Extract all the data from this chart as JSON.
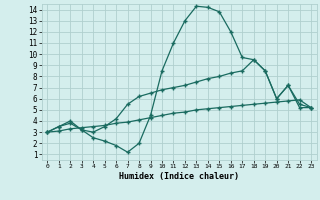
{
  "xlabel": "Humidex (Indice chaleur)",
  "background_color": "#d4eeed",
  "grid_color": "#b0d0ce",
  "line_color": "#1a6b60",
  "xlim": [
    -0.5,
    23.5
  ],
  "ylim": [
    0.5,
    14.5
  ],
  "xticks": [
    0,
    1,
    2,
    3,
    4,
    5,
    6,
    7,
    8,
    9,
    10,
    11,
    12,
    13,
    14,
    15,
    16,
    17,
    18,
    19,
    20,
    21,
    22,
    23
  ],
  "yticks": [
    1,
    2,
    3,
    4,
    5,
    6,
    7,
    8,
    9,
    10,
    11,
    12,
    13,
    14
  ],
  "line1_x": [
    0,
    1,
    2,
    3,
    4,
    5,
    6,
    7,
    8,
    9,
    10,
    11,
    12,
    13,
    14,
    15,
    16,
    17,
    18,
    19,
    20,
    21,
    22,
    23
  ],
  "line1_y": [
    3.0,
    3.5,
    3.8,
    3.2,
    2.5,
    2.2,
    1.8,
    1.2,
    2.0,
    4.5,
    8.5,
    11.0,
    13.0,
    14.3,
    14.2,
    13.8,
    12.0,
    9.7,
    9.5,
    8.5,
    6.0,
    7.2,
    5.2,
    5.2
  ],
  "line2_x": [
    0,
    1,
    2,
    3,
    4,
    5,
    6,
    7,
    8,
    9,
    10,
    11,
    12,
    13,
    14,
    15,
    16,
    17,
    18,
    19,
    20,
    21,
    22,
    23
  ],
  "line2_y": [
    3.0,
    3.5,
    4.0,
    3.2,
    3.0,
    3.5,
    4.2,
    5.5,
    6.2,
    6.5,
    6.8,
    7.0,
    7.2,
    7.5,
    7.8,
    8.0,
    8.3,
    8.5,
    9.5,
    8.5,
    6.0,
    7.2,
    5.5,
    5.2
  ],
  "line3_x": [
    0,
    1,
    2,
    3,
    4,
    5,
    6,
    7,
    8,
    9,
    10,
    11,
    12,
    13,
    14,
    15,
    16,
    17,
    18,
    19,
    20,
    21,
    22,
    23
  ],
  "line3_y": [
    3.0,
    3.1,
    3.3,
    3.4,
    3.5,
    3.6,
    3.8,
    3.9,
    4.1,
    4.3,
    4.5,
    4.7,
    4.8,
    5.0,
    5.1,
    5.2,
    5.3,
    5.4,
    5.5,
    5.6,
    5.7,
    5.8,
    5.9,
    5.2
  ],
  "marker": "+"
}
